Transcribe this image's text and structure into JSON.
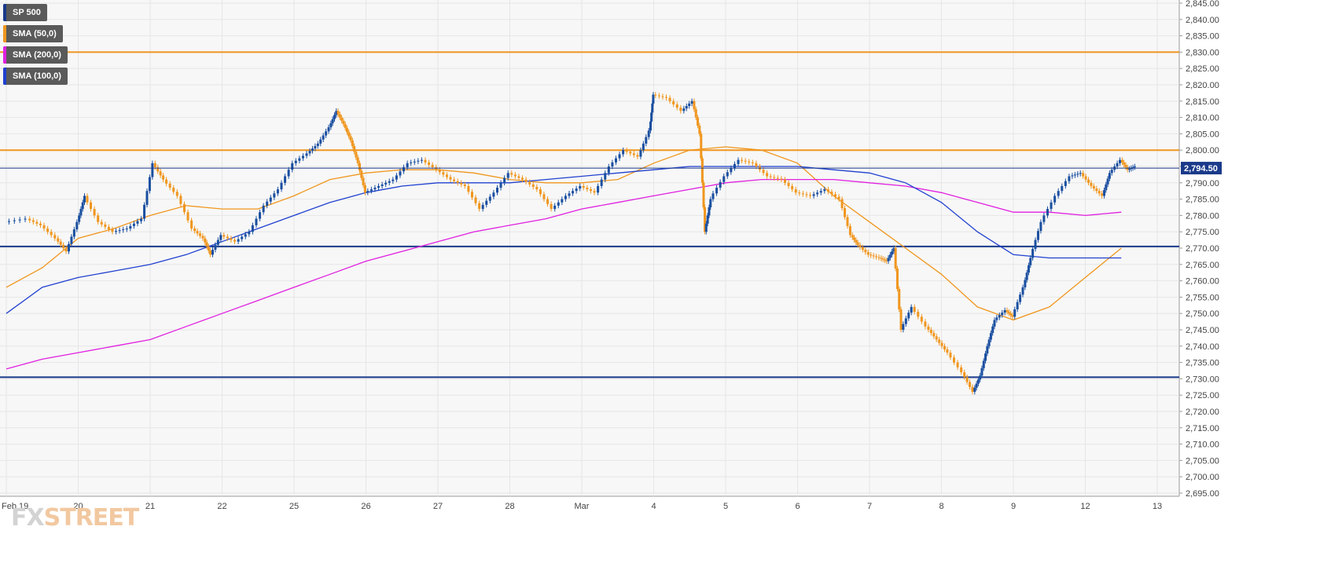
{
  "legend": [
    {
      "label": "SP 500",
      "color": "#1a3a8a"
    },
    {
      "label": "SMA (50,0)",
      "color": "#f0961e"
    },
    {
      "label": "SMA (200,0)",
      "color": "#e020e0"
    },
    {
      "label": "SMA (100,0)",
      "color": "#2040d0"
    }
  ],
  "logo": {
    "part1": "FX",
    "part2": "STREET"
  },
  "chart_data": {
    "type": "line",
    "title": "",
    "xlabel": "",
    "ylabel": "",
    "ylim": [
      2695,
      2845
    ],
    "yticks": [
      "2,845.00",
      "2,840.00",
      "2,835.00",
      "2,830.00",
      "2,825.00",
      "2,820.00",
      "2,815.00",
      "2,810.00",
      "2,805.00",
      "2,800.00",
      "2,795.00",
      "2,790.00",
      "2,785.00",
      "2,780.00",
      "2,775.00",
      "2,770.00",
      "2,765.00",
      "2,760.00",
      "2,755.00",
      "2,750.00",
      "2,745.00",
      "2,740.00",
      "2,735.00",
      "2,730.00",
      "2,725.00",
      "2,720.00",
      "2,715.00",
      "2,710.00",
      "2,705.00",
      "2,700.00",
      "2,695.00"
    ],
    "x_labels": [
      "Feb 19",
      "20",
      "21",
      "22",
      "25",
      "26",
      "27",
      "28",
      "Mar",
      "4",
      "5",
      "6",
      "7",
      "8",
      "9",
      "12",
      "13"
    ],
    "last_price": {
      "value": 2794.5,
      "label": "2,794.50"
    },
    "horizontal_lines": [
      {
        "value": 2830,
        "color": "#f0961e"
      },
      {
        "value": 2800,
        "color": "#f0961e"
      },
      {
        "value": 2770.5,
        "color": "#1a3a8a"
      },
      {
        "value": 2730.5,
        "color": "#1a3a8a"
      }
    ],
    "colors": {
      "up": "#1a4fa0",
      "down": "#f0961e",
      "grid": "#e6e6e6",
      "plot_bg": "#f7f7f7"
    },
    "price_path": [
      [
        0,
        2778
      ],
      [
        0.3,
        2779
      ],
      [
        0.5,
        2777
      ],
      [
        0.7,
        2773
      ],
      [
        0.85,
        2769
      ],
      [
        1.0,
        2778
      ],
      [
        1.1,
        2786
      ],
      [
        1.3,
        2778
      ],
      [
        1.5,
        2775
      ],
      [
        1.7,
        2776
      ],
      [
        1.9,
        2779
      ],
      [
        2.05,
        2796
      ],
      [
        2.2,
        2791
      ],
      [
        2.4,
        2786
      ],
      [
        2.6,
        2776
      ],
      [
        2.75,
        2773
      ],
      [
        2.85,
        2768
      ],
      [
        3.0,
        2774
      ],
      [
        3.2,
        2772
      ],
      [
        3.4,
        2775
      ],
      [
        3.6,
        2783
      ],
      [
        3.8,
        2788
      ],
      [
        4.0,
        2796
      ],
      [
        4.2,
        2799
      ],
      [
        4.35,
        2802
      ],
      [
        4.5,
        2807
      ],
      [
        4.6,
        2812
      ],
      [
        4.7,
        2808
      ],
      [
        4.8,
        2803
      ],
      [
        4.9,
        2796
      ],
      [
        5.0,
        2787
      ],
      [
        5.2,
        2789
      ],
      [
        5.4,
        2791
      ],
      [
        5.6,
        2796
      ],
      [
        5.8,
        2797
      ],
      [
        6.0,
        2794
      ],
      [
        6.2,
        2791
      ],
      [
        6.4,
        2789
      ],
      [
        6.6,
        2782
      ],
      [
        6.8,
        2787
      ],
      [
        7.0,
        2793
      ],
      [
        7.2,
        2791
      ],
      [
        7.4,
        2788
      ],
      [
        7.6,
        2782
      ],
      [
        7.8,
        2786
      ],
      [
        8.0,
        2789
      ],
      [
        8.2,
        2787
      ],
      [
        8.4,
        2795
      ],
      [
        8.6,
        2800
      ],
      [
        8.8,
        2798
      ],
      [
        8.95,
        2806
      ],
      [
        9.0,
        2817
      ],
      [
        9.2,
        2816
      ],
      [
        9.4,
        2812
      ],
      [
        9.55,
        2815
      ],
      [
        9.65,
        2805
      ],
      [
        9.72,
        2775
      ],
      [
        9.8,
        2785
      ],
      [
        10.0,
        2792
      ],
      [
        10.2,
        2797
      ],
      [
        10.4,
        2796
      ],
      [
        10.6,
        2792
      ],
      [
        10.8,
        2791
      ],
      [
        11.0,
        2787
      ],
      [
        11.2,
        2786
      ],
      [
        11.4,
        2788
      ],
      [
        11.6,
        2785
      ],
      [
        11.75,
        2774
      ],
      [
        11.85,
        2771
      ],
      [
        12.0,
        2768
      ],
      [
        12.15,
        2767
      ],
      [
        12.25,
        2766
      ],
      [
        12.35,
        2770
      ],
      [
        12.45,
        2745
      ],
      [
        12.6,
        2752
      ],
      [
        12.8,
        2746
      ],
      [
        12.95,
        2742
      ],
      [
        13.1,
        2738
      ],
      [
        13.3,
        2732
      ],
      [
        13.45,
        2726
      ],
      [
        13.55,
        2731
      ],
      [
        13.65,
        2740
      ],
      [
        13.75,
        2748
      ],
      [
        13.9,
        2751
      ],
      [
        14.0,
        2749
      ],
      [
        14.15,
        2758
      ],
      [
        14.25,
        2767
      ],
      [
        14.4,
        2778
      ],
      [
        14.6,
        2786
      ],
      [
        14.8,
        2792
      ],
      [
        14.95,
        2793
      ],
      [
        15.1,
        2789
      ],
      [
        15.25,
        2786
      ],
      [
        15.35,
        2793
      ],
      [
        15.5,
        2797
      ],
      [
        15.6,
        2794
      ],
      [
        15.7,
        2795
      ]
    ],
    "series": [
      {
        "name": "SMA (50,0)",
        "color": "#f0961e",
        "points": [
          [
            0,
            2758
          ],
          [
            0.5,
            2764
          ],
          [
            1.0,
            2773
          ],
          [
            1.5,
            2776
          ],
          [
            2.0,
            2780
          ],
          [
            2.5,
            2783
          ],
          [
            3.0,
            2782
          ],
          [
            3.5,
            2782
          ],
          [
            4.0,
            2786
          ],
          [
            4.5,
            2791
          ],
          [
            5.0,
            2793
          ],
          [
            5.5,
            2794
          ],
          [
            6.0,
            2794
          ],
          [
            6.5,
            2793
          ],
          [
            7.0,
            2791
          ],
          [
            7.5,
            2790
          ],
          [
            8.0,
            2790
          ],
          [
            8.5,
            2791
          ],
          [
            9.0,
            2796
          ],
          [
            9.5,
            2800
          ],
          [
            10.0,
            2801
          ],
          [
            10.5,
            2800
          ],
          [
            11.0,
            2796
          ],
          [
            11.5,
            2786
          ],
          [
            12.0,
            2778
          ],
          [
            12.5,
            2770
          ],
          [
            13.0,
            2762
          ],
          [
            13.5,
            2752
          ],
          [
            14.0,
            2748
          ],
          [
            14.5,
            2752
          ],
          [
            15.0,
            2761
          ],
          [
            15.5,
            2770
          ]
        ]
      },
      {
        "name": "SMA (200,0)",
        "color": "#e020e0",
        "points": [
          [
            0,
            2733
          ],
          [
            0.5,
            2736
          ],
          [
            1.0,
            2738
          ],
          [
            1.5,
            2740
          ],
          [
            2.0,
            2742
          ],
          [
            2.5,
            2746
          ],
          [
            3.0,
            2750
          ],
          [
            3.5,
            2754
          ],
          [
            4.0,
            2758
          ],
          [
            4.5,
            2762
          ],
          [
            5.0,
            2766
          ],
          [
            5.5,
            2769
          ],
          [
            6.0,
            2772
          ],
          [
            6.5,
            2775
          ],
          [
            7.0,
            2777
          ],
          [
            7.5,
            2779
          ],
          [
            8.0,
            2782
          ],
          [
            8.5,
            2784
          ],
          [
            9.0,
            2786
          ],
          [
            9.5,
            2788
          ],
          [
            10.0,
            2790
          ],
          [
            10.5,
            2791
          ],
          [
            11.0,
            2791
          ],
          [
            11.5,
            2791
          ],
          [
            12.0,
            2790
          ],
          [
            12.5,
            2789
          ],
          [
            13.0,
            2787
          ],
          [
            13.5,
            2784
          ],
          [
            14.0,
            2781
          ],
          [
            14.5,
            2781
          ],
          [
            15.0,
            2780
          ],
          [
            15.5,
            2781
          ]
        ]
      },
      {
        "name": "SMA (100,0)",
        "color": "#2040d0",
        "points": [
          [
            0,
            2750
          ],
          [
            0.5,
            2758
          ],
          [
            1.0,
            2761
          ],
          [
            1.5,
            2763
          ],
          [
            2.0,
            2765
          ],
          [
            2.5,
            2768
          ],
          [
            3.0,
            2772
          ],
          [
            3.5,
            2776
          ],
          [
            4.0,
            2780
          ],
          [
            4.5,
            2784
          ],
          [
            5.0,
            2787
          ],
          [
            5.5,
            2789
          ],
          [
            6.0,
            2790
          ],
          [
            6.5,
            2790
          ],
          [
            7.0,
            2790
          ],
          [
            7.5,
            2791
          ],
          [
            8.0,
            2792
          ],
          [
            8.5,
            2793
          ],
          [
            9.0,
            2794
          ],
          [
            9.5,
            2795
          ],
          [
            10.0,
            2795
          ],
          [
            10.5,
            2795
          ],
          [
            11.0,
            2795
          ],
          [
            11.5,
            2794
          ],
          [
            12.0,
            2793
          ],
          [
            12.5,
            2790
          ],
          [
            13.0,
            2784
          ],
          [
            13.5,
            2775
          ],
          [
            14.0,
            2768
          ],
          [
            14.5,
            2767
          ],
          [
            15.0,
            2767
          ],
          [
            15.5,
            2767
          ]
        ]
      }
    ]
  }
}
